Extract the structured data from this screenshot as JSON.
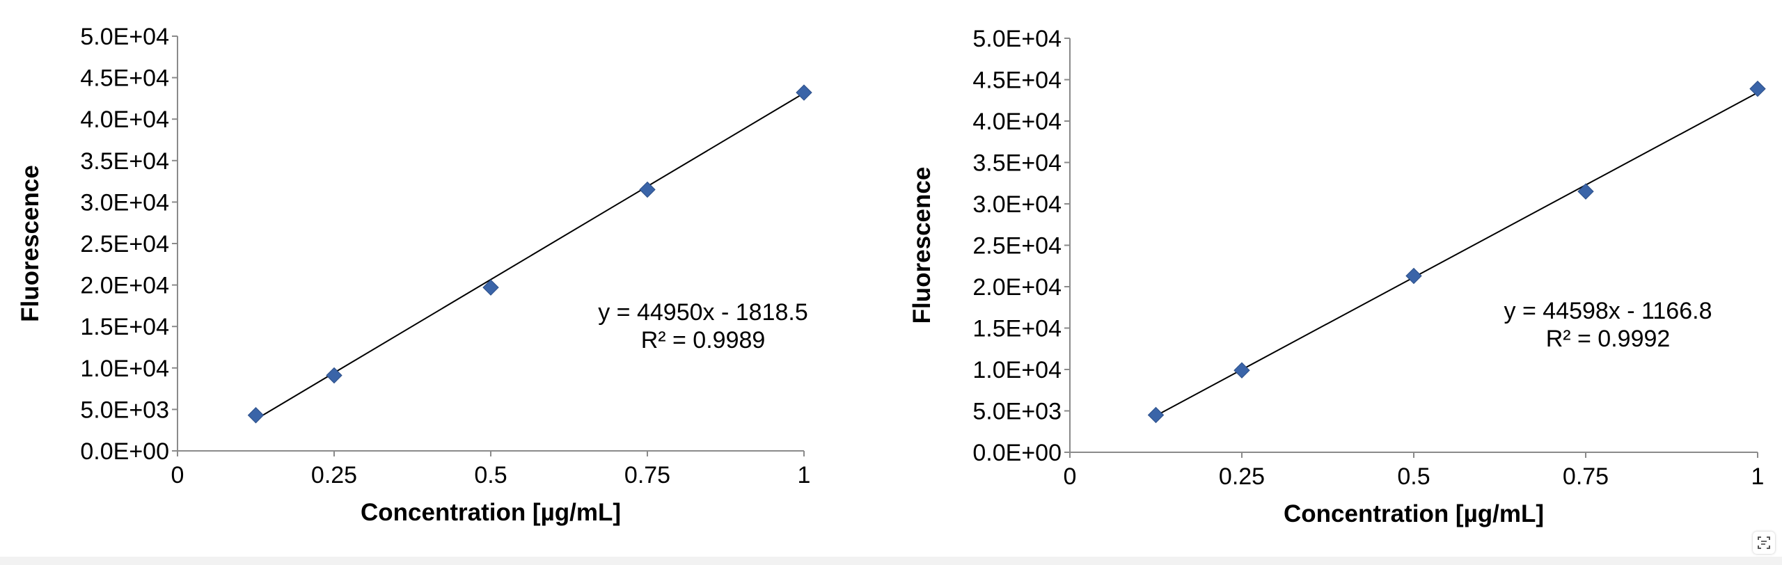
{
  "chart_data": [
    {
      "type": "scatter",
      "xlabel": "Concentration [µg/mL]",
      "ylabel": "Fluorescence",
      "xlim": [
        0,
        1
      ],
      "ylim": [
        0,
        50000
      ],
      "x_ticks": [
        "0",
        "0.25",
        "0.5",
        "0.75",
        "1"
      ],
      "y_ticks": [
        "0.0E+00",
        "5.0E+03",
        "1.0E+04",
        "1.5E+04",
        "2.0E+04",
        "2.5E+04",
        "3.0E+04",
        "3.5E+04",
        "4.0E+04",
        "4.5E+04",
        "5.0E+04"
      ],
      "series": [
        {
          "x": [
            0.125,
            0.25,
            0.5,
            0.75,
            1.0
          ],
          "y": [
            4300,
            9100,
            19700,
            31500,
            43200
          ]
        }
      ],
      "trendline": {
        "slope": 44950,
        "intercept": -1818.5
      },
      "equation": "y = 44950x - 1818.5",
      "r2_label": "R² = 0.9989",
      "marker_color": "#3a64a8"
    },
    {
      "type": "scatter",
      "xlabel": "Concentration [µg/mL]",
      "ylabel": "Fluorescence",
      "xlim": [
        0,
        1
      ],
      "ylim": [
        0,
        50000
      ],
      "x_ticks": [
        "0",
        "0.25",
        "0.5",
        "0.75",
        "1"
      ],
      "y_ticks": [
        "0.0E+00",
        "5.0E+03",
        "1.0E+04",
        "1.5E+04",
        "2.0E+04",
        "2.5E+04",
        "3.0E+04",
        "3.5E+04",
        "4.0E+04",
        "4.5E+04",
        "5.0E+04"
      ],
      "series": [
        {
          "x": [
            0.125,
            0.25,
            0.5,
            0.75,
            1.0
          ],
          "y": [
            4500,
            9900,
            21300,
            31500,
            43900
          ]
        }
      ],
      "trendline": {
        "slope": 44598,
        "intercept": -1166.8
      },
      "equation": "y = 44598x - 1166.8",
      "r2_label": "R² = 0.9992",
      "marker_color": "#3a64a8"
    }
  ],
  "icons": {
    "corner_button": "scan-text-icon"
  }
}
